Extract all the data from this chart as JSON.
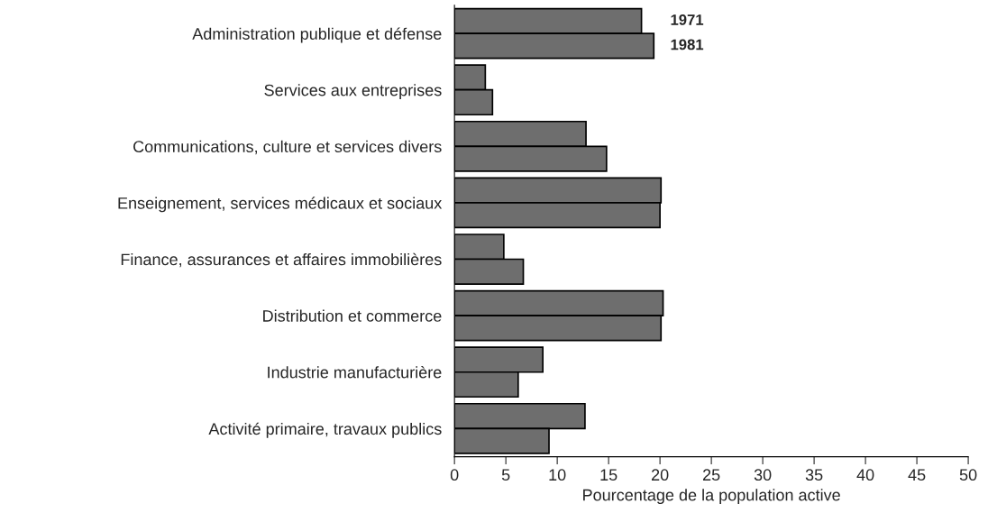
{
  "chart_data": {
    "type": "bar",
    "orientation": "horizontal",
    "xlabel": "Pourcentage de la population active",
    "categories": [
      "Administration publique et défense",
      "Services aux entreprises",
      "Communications, culture et services divers",
      "Enseignement, services médicaux et sociaux",
      "Finance, assurances et affaires immobilières",
      "Distribution et commerce",
      "Industrie manufacturière",
      "Activité primaire, travaux publics"
    ],
    "series": [
      {
        "name": "1971",
        "color": "#6e6e6e",
        "values": [
          18.2,
          3.0,
          12.8,
          20.1,
          4.8,
          20.3,
          8.6,
          12.7
        ]
      },
      {
        "name": "1981",
        "color": "#6e6e6e",
        "values": [
          19.4,
          3.7,
          14.8,
          20.0,
          6.7,
          20.1,
          6.2,
          9.2
        ]
      }
    ],
    "xlim": [
      0,
      50
    ],
    "xticks": [
      0,
      5,
      10,
      15,
      20,
      25,
      30,
      35,
      40,
      45,
      50
    ],
    "grid": false,
    "legend": false
  }
}
